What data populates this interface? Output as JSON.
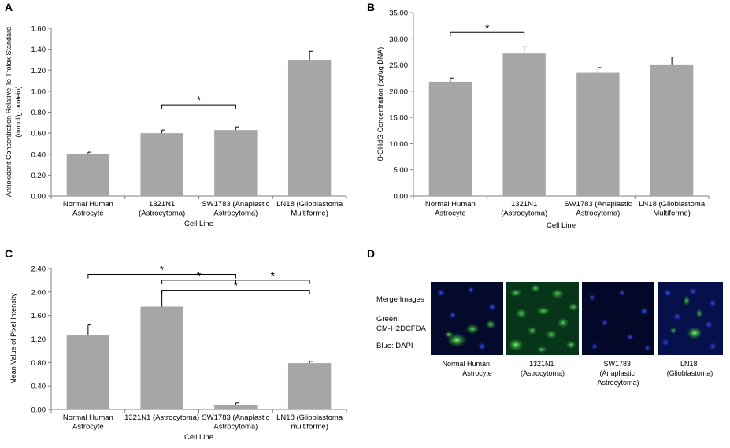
{
  "colors": {
    "bar": "#a6a6a6",
    "axis": "#7f7f7f",
    "bracket": "#000000"
  },
  "chart_data": [
    {
      "panel": "A",
      "type": "bar",
      "categories": [
        [
          "Normal Human",
          "Astrocyte"
        ],
        [
          "1321N1",
          "(Astrocytoma)"
        ],
        [
          "SW1783 (Anaplastic",
          "Astrocytoma)"
        ],
        [
          "LN18 (Glioblastoma",
          "Multiforme)"
        ]
      ],
      "values": [
        0.4,
        0.6,
        0.63,
        1.3
      ],
      "errors": [
        0.02,
        0.03,
        0.03,
        0.08
      ],
      "ylim": [
        0,
        1.6
      ],
      "ticks": [
        "0.00",
        "0.20",
        "0.40",
        "0.60",
        "0.80",
        "1.00",
        "1.20",
        "1.40",
        "1.60"
      ],
      "ylabel": [
        "Antioxidant Concentration Relative To Trolox Standard",
        "(mmol/g protein)"
      ],
      "xlabel": "Cell Line",
      "significance": [
        {
          "from": 1,
          "to": 2,
          "y": 0.87,
          "label": "*"
        }
      ]
    },
    {
      "panel": "B",
      "type": "bar",
      "categories": [
        [
          "Normal Human",
          "Astrocyte"
        ],
        [
          "1321N1",
          "(Astrocytoma)"
        ],
        [
          "SW1783 (Anaplastic",
          "Astrocytoma)"
        ],
        [
          "LN18 (Glioblastoma",
          "Multiforme)"
        ]
      ],
      "values": [
        21.8,
        27.3,
        23.5,
        25.1
      ],
      "errors": [
        0.7,
        1.3,
        1.0,
        1.4
      ],
      "ylim": [
        0,
        35
      ],
      "ticks": [
        "0.00",
        "5.00",
        "10.00",
        "15.00",
        "20.00",
        "25.00",
        "30.00",
        "35.00"
      ],
      "ylabel": [
        "8-OHdG Concentration (pg/ug DNA)"
      ],
      "xlabel": "Cell Line",
      "significance": [
        {
          "from": 0,
          "to": 1,
          "y": 31.2,
          "label": "*"
        }
      ]
    },
    {
      "panel": "C",
      "type": "bar",
      "categories": [
        [
          "Normal Human",
          "Astrocyte"
        ],
        [
          "1321N1 (Astrocytoma)"
        ],
        [
          "SW1783 (Anaplastic",
          "Astrocytoma)"
        ],
        [
          "LN18 (Glioblastoma",
          "multiforme)"
        ]
      ],
      "values": [
        1.26,
        1.75,
        0.08,
        0.79
      ],
      "errors": [
        0.18,
        0.28,
        0.03,
        0.03
      ],
      "ylim": [
        0,
        2.4
      ],
      "ticks": [
        "0.00",
        "0.40",
        "0.80",
        "1.20",
        "1.60",
        "2.00",
        "2.40"
      ],
      "ylabel": [
        "Mean Value of Pixel Intensity"
      ],
      "xlabel": "Cell Line",
      "significance": [
        {
          "from": 0,
          "to": 2,
          "y": 2.3,
          "label": "*"
        },
        {
          "from": 1,
          "to": 2,
          "y": 2.2,
          "label": "*"
        },
        {
          "from": 2,
          "to": 3,
          "y": 2.2,
          "label": "*"
        },
        {
          "from": 1,
          "to": 3,
          "y": 2.03,
          "label": "*"
        }
      ]
    }
  ],
  "panel_d": {
    "letter": "D",
    "legend": [
      "Merge Images",
      "Green:",
      "CM-H2DCFDA",
      "Blue: DAPI"
    ],
    "captions": [
      [
        "Normal Human",
        "Astrocyte"
      ],
      [
        "1321N1",
        "(Astrocytoma)"
      ],
      [
        "SW1783",
        "(Anaplastic",
        "Astrocytoma)"
      ],
      [
        "LN18",
        "(Glioblastoma)"
      ]
    ]
  }
}
